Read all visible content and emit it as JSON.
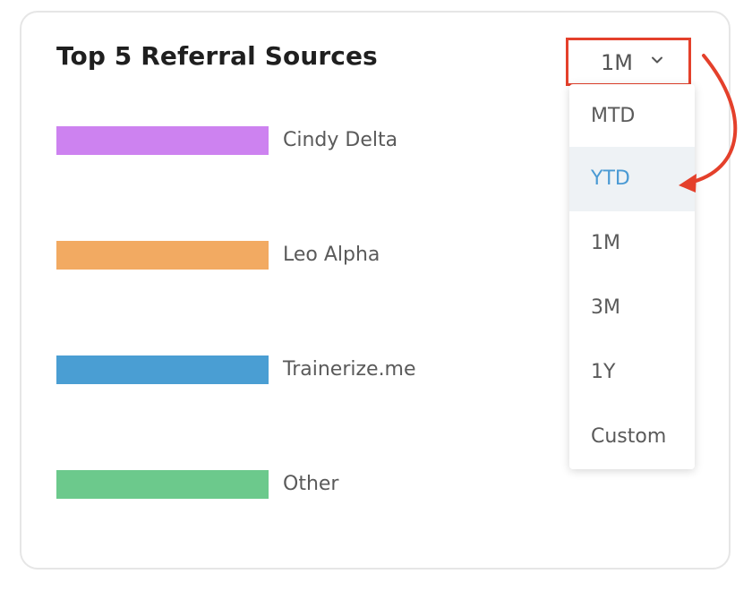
{
  "widget": {
    "title": "Top 5 Referral Sources"
  },
  "legend": [
    {
      "label": "Cindy Delta",
      "color": "#cd82f0"
    },
    {
      "label": "Leo Alpha",
      "color": "#f2aa62"
    },
    {
      "label": "Trainerize.me",
      "color": "#4a9ed3"
    },
    {
      "label": "Other",
      "color": "#6cc98c"
    }
  ],
  "period_selector": {
    "value": "1M",
    "icon": "chevron-down-icon",
    "highlight_color": "#e4402b"
  },
  "dropdown": {
    "options": [
      "MTD",
      "YTD",
      "1M",
      "3M",
      "1Y",
      "Custom"
    ],
    "selected": "YTD",
    "selected_color": "#4a9ad4"
  },
  "annotation": {
    "icon": "curved-arrow-icon",
    "color": "#e4402b"
  }
}
